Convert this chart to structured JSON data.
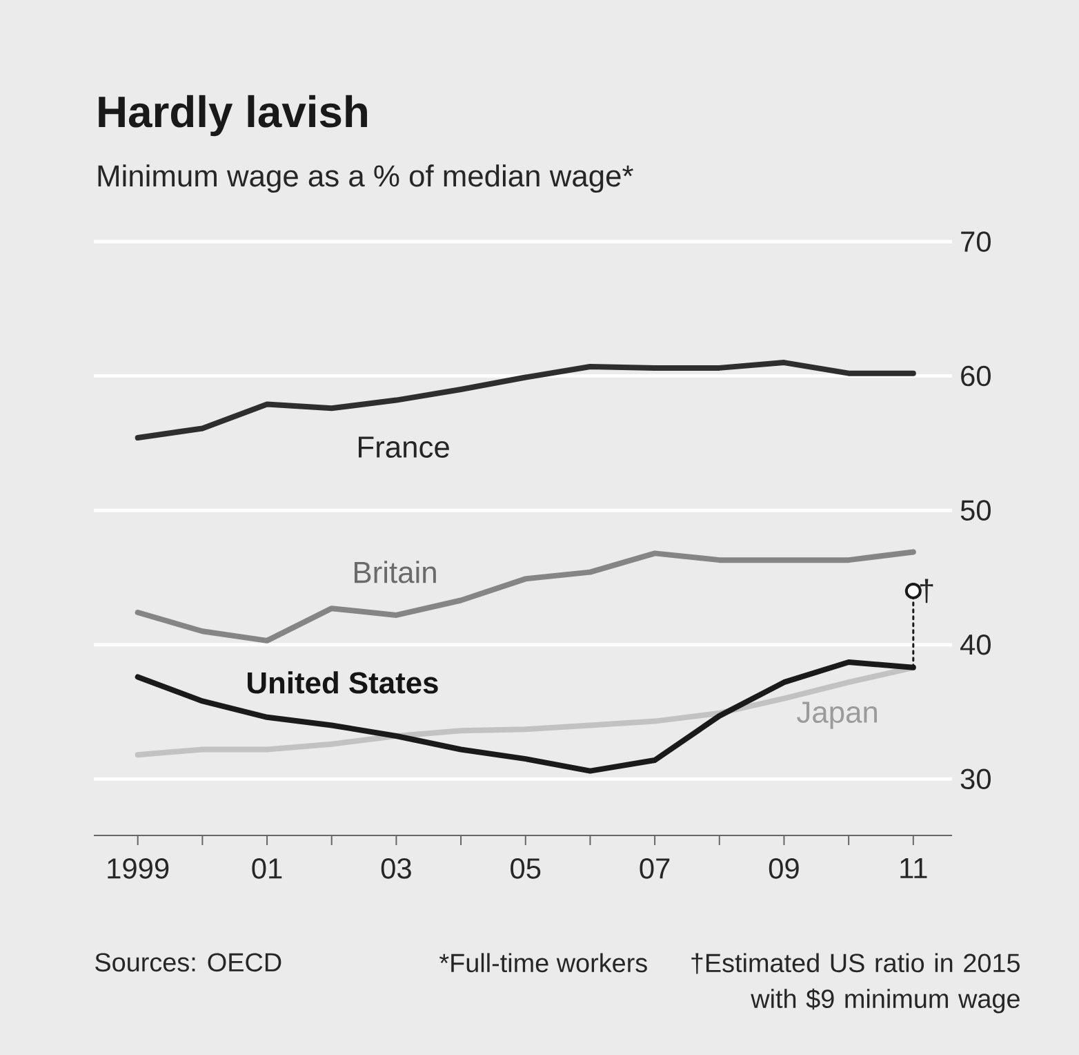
{
  "chart_data": {
    "type": "line",
    "title": "Hardly lavish",
    "subtitle": "Minimum wage as a % of median wage*",
    "x": [
      1999,
      2000,
      2001,
      2002,
      2003,
      2004,
      2005,
      2006,
      2007,
      2008,
      2009,
      2010,
      2011
    ],
    "series": [
      {
        "name": "France",
        "color": "#2e2e2e",
        "values": [
          55.4,
          56.1,
          57.9,
          57.6,
          58.2,
          59.0,
          59.9,
          60.7,
          60.6,
          60.6,
          61.0,
          60.2,
          60.2
        ]
      },
      {
        "name": "Britain",
        "color": "#858585",
        "values": [
          42.4,
          41.0,
          40.3,
          42.7,
          42.2,
          43.3,
          44.9,
          45.4,
          46.8,
          46.3,
          46.3,
          46.3,
          46.9
        ]
      },
      {
        "name": "Japan",
        "color": "#c2c2c2",
        "values": [
          31.8,
          32.2,
          32.2,
          32.6,
          33.2,
          33.6,
          33.7,
          34.0,
          34.3,
          34.9,
          36.0,
          37.2,
          38.3
        ]
      },
      {
        "name": "United States",
        "color": "#1a1a1a",
        "values": [
          37.6,
          35.8,
          34.6,
          34.0,
          33.2,
          32.2,
          31.5,
          30.6,
          31.4,
          34.7,
          37.2,
          38.7,
          38.3
        ]
      },
      {
        "type": "line",
        "line_style": "dotted",
        "color": "#1a1a1a",
        "x": [
          2011,
          2011
        ],
        "values": [
          38.3,
          44.0
        ]
      },
      {
        "type": "scatter",
        "marker": "circle",
        "color": "#1a1a1a",
        "values": [
          null,
          null,
          null,
          null,
          null,
          null,
          null,
          null,
          null,
          null,
          null,
          null,
          44.0
        ]
      }
    ],
    "xlim": [
      1998.32,
      2011.6
    ],
    "ylim": [
      25.8,
      70
    ],
    "xticks": [
      {
        "value": 1999,
        "label": "1999"
      },
      {
        "value": 2000,
        "label": null
      },
      {
        "value": 2001,
        "label": "01"
      },
      {
        "value": 2002,
        "label": null
      },
      {
        "value": 2003,
        "label": "03"
      },
      {
        "value": 2004,
        "label": null
      },
      {
        "value": 2005,
        "label": "05"
      },
      {
        "value": 2006,
        "label": null
      },
      {
        "value": 2007,
        "label": "07"
      },
      {
        "value": 2008,
        "label": null
      },
      {
        "value": 2009,
        "label": "09"
      },
      {
        "value": 2010,
        "label": null
      },
      {
        "value": 2011,
        "label": "11"
      }
    ],
    "yticks": [
      30,
      40,
      50,
      60,
      70
    ],
    "grid": "y",
    "legend": false,
    "marker": "none",
    "line_style": "solid",
    "annotations": [
      {
        "text": "†",
        "x": 2011,
        "y": 44.0
      },
      "Sources: OECD",
      "*Full-time workers",
      "†Estimated US ratio in 2015 with $9 minimum wage"
    ]
  }
}
